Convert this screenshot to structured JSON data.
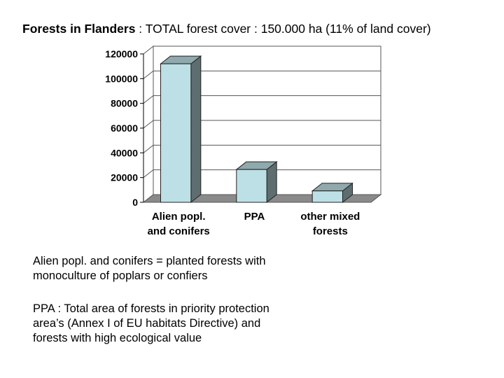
{
  "title": {
    "bold": "Forests in Flanders",
    "rest": " : TOTAL forest cover : 150.000 ha (11% of land cover)"
  },
  "chart_data": {
    "type": "bar",
    "categories": [
      [
        "Alien popl.",
        "and conifers"
      ],
      [
        "PPA"
      ],
      [
        "other mixed",
        "forests"
      ]
    ],
    "values": [
      112000,
      26500,
      9200
    ],
    "ylim": [
      0,
      120000
    ],
    "yticks": [
      "0",
      "20000",
      "40000",
      "60000",
      "80000",
      "100000",
      "120000"
    ],
    "grid": true,
    "style": "3d",
    "colors": {
      "bar_front": "#bde0e6",
      "bar_side": "#5e6e70",
      "bar_top": "#8fa9ad",
      "floor": "#8a8a8a",
      "grid": "#555555"
    }
  },
  "notes": [
    [
      "Alien popl. and conifers = planted forests with",
      "monoculture of poplars or confiers"
    ],
    [
      "PPA : Total area of forests in priority protection",
      "area’s (Annex I of EU habitats Directive) and",
      "forests with high ecological value"
    ]
  ]
}
